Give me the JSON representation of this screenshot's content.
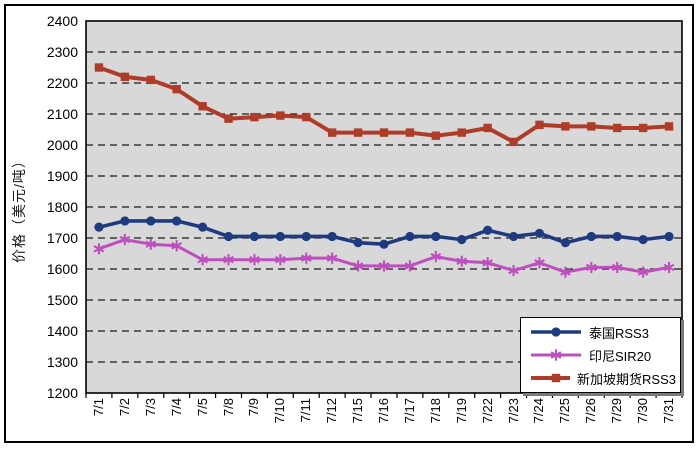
{
  "window": {
    "background": "#FFFFFF",
    "frame_border_color": "#000000"
  },
  "chart_data": {
    "type": "line",
    "title": "",
    "xlabel": "",
    "ylabel": "价格（美元/吨）",
    "ylim": [
      1200,
      2400
    ],
    "y_ticks": [
      2400,
      2300,
      2200,
      2100,
      2000,
      1900,
      1800,
      1700,
      1600,
      1500,
      1400,
      1300,
      1200
    ],
    "grid": "horizontal dashed",
    "gridline_color": "#1a1a1a",
    "plot_background": "#D8D8D8",
    "legend_position": "inside bottom-right",
    "categories": [
      "7/1",
      "7/2",
      "7/3",
      "7/4",
      "7/5",
      "7/8",
      "7/9",
      "7/10",
      "7/11",
      "7/12",
      "7/15",
      "7/16",
      "7/17",
      "7/18",
      "7/19",
      "7/22",
      "7/23",
      "7/24",
      "7/25",
      "7/26",
      "7/29",
      "7/30",
      "7/31"
    ],
    "series": [
      {
        "name": "泰国RSS3",
        "color": "#1F3B80",
        "marker": "circle",
        "values": [
          1735,
          1755,
          1755,
          1755,
          1735,
          1705,
          1705,
          1705,
          1705,
          1705,
          1685,
          1680,
          1705,
          1705,
          1695,
          1725,
          1705,
          1715,
          1685,
          1705,
          1705,
          1695,
          1705
        ]
      },
      {
        "name": "印尼SIR20",
        "color": "#BE4FBE",
        "marker": "asterisk",
        "values": [
          1665,
          1695,
          1680,
          1675,
          1630,
          1630,
          1630,
          1630,
          1635,
          1635,
          1610,
          1610,
          1610,
          1640,
          1625,
          1620,
          1595,
          1620,
          1590,
          1605,
          1605,
          1590,
          1605
        ]
      },
      {
        "name": "新加坡期货RSS3",
        "color": "#AF3C28",
        "marker": "square",
        "values": [
          2250,
          2220,
          2210,
          2180,
          2125,
          2085,
          2090,
          2095,
          2090,
          2040,
          2040,
          2040,
          2040,
          2030,
          2040,
          2055,
          2010,
          2065,
          2060,
          2060,
          2055,
          2055,
          2060
        ]
      }
    ]
  }
}
